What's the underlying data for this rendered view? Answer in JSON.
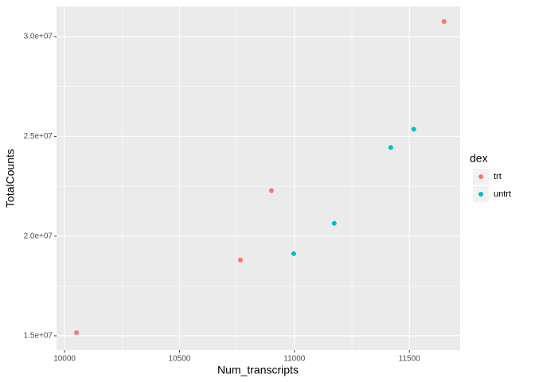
{
  "chart_data": {
    "type": "scatter",
    "x_label": "Num_transcripts",
    "y_label": "TotalCounts",
    "legend_title": "dex",
    "legend_position": "right",
    "grid": true,
    "xlim": [
      9965,
      11721
    ],
    "ylim": [
      14280000,
      31520000
    ],
    "xticks": [
      10000,
      10500,
      11000,
      11500
    ],
    "yticks": [
      {
        "value": 15000000,
        "label": "1.5e+07"
      },
      {
        "value": 20000000,
        "label": "2.0e+07"
      },
      {
        "value": 25000000,
        "label": "2.5e+07"
      },
      {
        "value": 30000000,
        "label": "3.0e+07"
      }
    ],
    "series": [
      {
        "name": "trt",
        "color": "#F8766D",
        "x": [
          10052,
          10765,
          10900,
          11651
        ],
        "values": [
          15160000,
          18800000,
          22280000,
          30760000
        ]
      },
      {
        "name": "untrt",
        "color": "#00BFC4",
        "x": [
          10997,
          11173,
          11419,
          11519
        ],
        "values": [
          19120000,
          20640000,
          24440000,
          25360000
        ]
      }
    ]
  }
}
